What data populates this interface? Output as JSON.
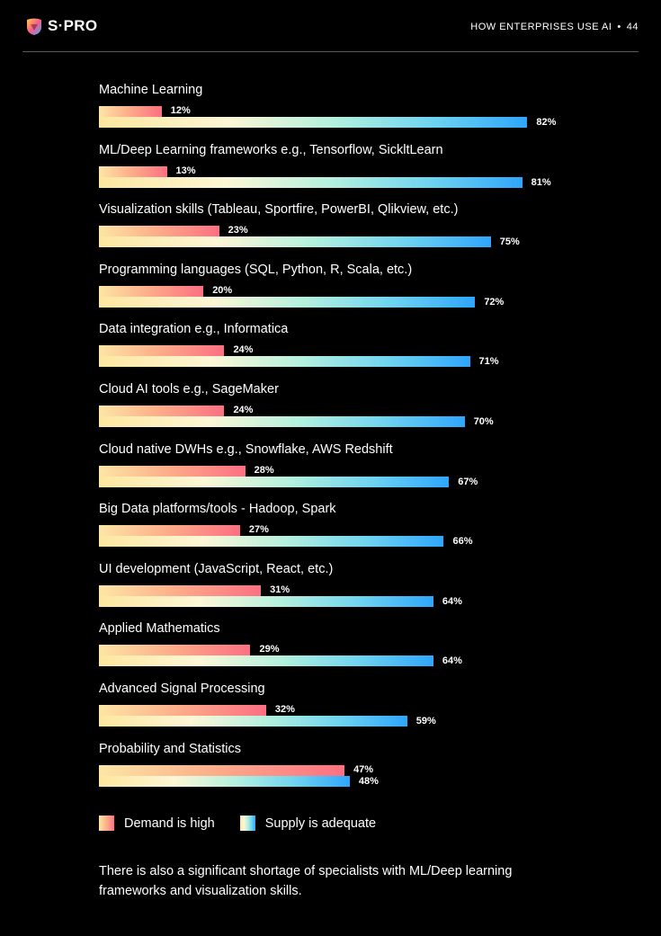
{
  "header": {
    "logo_text": "S·PRO",
    "section_title": "HOW ENTERPRISES USE AI",
    "separator": "•",
    "page_number": "44"
  },
  "chart_data": {
    "type": "bar",
    "orientation": "horizontal",
    "categories": [
      "Machine Learning",
      "ML/Deep Learning frameworks e.g., Tensorflow, SickltLearn",
      "Visualization skills (Tableau, Sportfire, PowerBI, Qlikview, etc.)",
      "Programming languages (SQL, Python, R, Scala, etc.)",
      "Data integration e.g., Informatica",
      "Cloud AI tools e.g., SageMaker",
      "Cloud native DWHs e.g., Snowflake, AWS Redshift",
      "Big Data platforms/tools - Hadoop, Spark",
      "UI development (JavaScript, React, etc.)",
      "Applied Mathematics",
      "Advanced Signal Processing",
      "Probability and Statistics"
    ],
    "series": [
      {
        "name": "Demand is high",
        "values": [
          12,
          13,
          23,
          20,
          24,
          24,
          28,
          27,
          31,
          29,
          32,
          47
        ],
        "color": "#fd6f82"
      },
      {
        "name": "Supply is adequate",
        "values": [
          82,
          81,
          75,
          72,
          71,
          70,
          67,
          66,
          64,
          64,
          59,
          48
        ],
        "color": "#2fa6fb"
      }
    ],
    "value_suffix": "%",
    "xlim": [
      0,
      100
    ],
    "grid": false,
    "legend_position": "bottom-left"
  },
  "footnote": "There is also a significant shortage of specialists with ML/Deep learning frameworks and visualization skills."
}
